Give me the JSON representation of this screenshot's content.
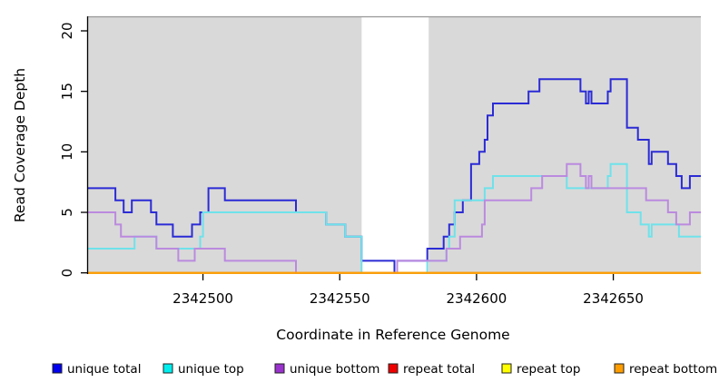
{
  "chart_data": {
    "type": "line",
    "line_style": "step-after",
    "title": "",
    "xlabel": "Coordinate in Reference Genome",
    "ylabel": "Read Coverage Depth",
    "xlim": [
      2342458,
      2342682
    ],
    "ylim": [
      0,
      21.3
    ],
    "x_ticks": [
      2342500,
      2342550,
      2342600,
      2342650
    ],
    "x_tick_labels": [
      "2342500",
      "2342550",
      "2342600",
      "2342650"
    ],
    "y_ticks": [
      0,
      5,
      10,
      15,
      20
    ],
    "y_tick_labels": [
      "0",
      "5",
      "10",
      "15",
      "20"
    ],
    "grid": "off",
    "plot_background_color": "#d9d9d9",
    "highlight_band": {
      "x0": 2342558,
      "x1": 2342582.5,
      "color": "#ffffff"
    },
    "axis_color": "#000000",
    "border_top_color": "#979797",
    "legend_position": "bottom",
    "series": [
      {
        "name": "unique total",
        "line_color": "#2b2bd5",
        "legend_color": "#0000ee",
        "steps": [
          [
            2342458,
            7
          ],
          [
            2342468,
            6
          ],
          [
            2342471,
            5
          ],
          [
            2342474,
            6
          ],
          [
            2342481,
            5
          ],
          [
            2342483,
            4
          ],
          [
            2342489,
            3
          ],
          [
            2342496,
            4
          ],
          [
            2342499,
            5
          ],
          [
            2342502,
            7
          ],
          [
            2342508,
            6
          ],
          [
            2342534,
            5
          ],
          [
            2342545,
            4
          ],
          [
            2342552,
            3
          ],
          [
            2342558,
            1
          ],
          [
            2342570,
            0
          ],
          [
            2342571,
            1
          ],
          [
            2342582,
            2
          ],
          [
            2342588,
            3
          ],
          [
            2342590,
            4
          ],
          [
            2342592,
            5
          ],
          [
            2342595,
            6
          ],
          [
            2342598,
            9
          ],
          [
            2342601,
            10
          ],
          [
            2342603,
            11
          ],
          [
            2342604,
            13
          ],
          [
            2342606,
            14
          ],
          [
            2342619,
            15
          ],
          [
            2342623,
            16
          ],
          [
            2342638,
            15
          ],
          [
            2342640,
            14
          ],
          [
            2342641,
            15
          ],
          [
            2342642,
            14
          ],
          [
            2342648,
            15
          ],
          [
            2342649,
            16
          ],
          [
            2342655,
            12
          ],
          [
            2342659,
            11
          ],
          [
            2342663,
            9
          ],
          [
            2342664,
            10
          ],
          [
            2342670,
            9
          ],
          [
            2342673,
            8
          ],
          [
            2342675,
            7
          ],
          [
            2342678,
            8
          ]
        ]
      },
      {
        "name": "unique top",
        "line_color": "#6fe2ea",
        "legend_color": "#00eeee",
        "steps": [
          [
            2342458,
            2
          ],
          [
            2342475,
            3
          ],
          [
            2342483,
            2
          ],
          [
            2342499,
            3
          ],
          [
            2342500,
            5
          ],
          [
            2342545,
            4
          ],
          [
            2342552,
            3
          ],
          [
            2342558,
            0
          ],
          [
            2342582,
            1
          ],
          [
            2342589,
            2
          ],
          [
            2342590,
            3
          ],
          [
            2342592,
            6
          ],
          [
            2342603,
            7
          ],
          [
            2342606,
            8
          ],
          [
            2342633,
            7
          ],
          [
            2342648,
            8
          ],
          [
            2342649,
            9
          ],
          [
            2342655,
            5
          ],
          [
            2342660,
            4
          ],
          [
            2342663,
            3
          ],
          [
            2342664,
            4
          ],
          [
            2342674,
            3
          ]
        ]
      },
      {
        "name": "unique bottom",
        "line_color": "#bb8adf",
        "legend_color": "#9a32cd",
        "steps": [
          [
            2342458,
            5
          ],
          [
            2342468,
            4
          ],
          [
            2342470,
            3
          ],
          [
            2342483,
            2
          ],
          [
            2342491,
            1
          ],
          [
            2342497,
            2
          ],
          [
            2342508,
            1
          ],
          [
            2342534,
            0
          ],
          [
            2342571,
            1
          ],
          [
            2342589,
            2
          ],
          [
            2342594,
            3
          ],
          [
            2342602,
            4
          ],
          [
            2342603,
            6
          ],
          [
            2342620,
            7
          ],
          [
            2342624,
            8
          ],
          [
            2342633,
            9
          ],
          [
            2342638,
            8
          ],
          [
            2342640,
            7
          ],
          [
            2342641,
            8
          ],
          [
            2342642,
            7
          ],
          [
            2342662,
            6
          ],
          [
            2342670,
            5
          ],
          [
            2342673,
            4
          ],
          [
            2342678,
            5
          ]
        ]
      },
      {
        "name": "repeat total",
        "line_color": "#cc0000",
        "legend_color": "#ee0000",
        "steps": [
          [
            2342458,
            0
          ]
        ]
      },
      {
        "name": "repeat top",
        "line_color": "#eded3a",
        "legend_color": "#ffff00",
        "steps": [
          [
            2342458,
            0
          ]
        ]
      },
      {
        "name": "repeat bottom",
        "line_color": "#ff9d00",
        "legend_color": "#ff9d00",
        "steps": [
          [
            2342458,
            0
          ]
        ]
      }
    ]
  }
}
